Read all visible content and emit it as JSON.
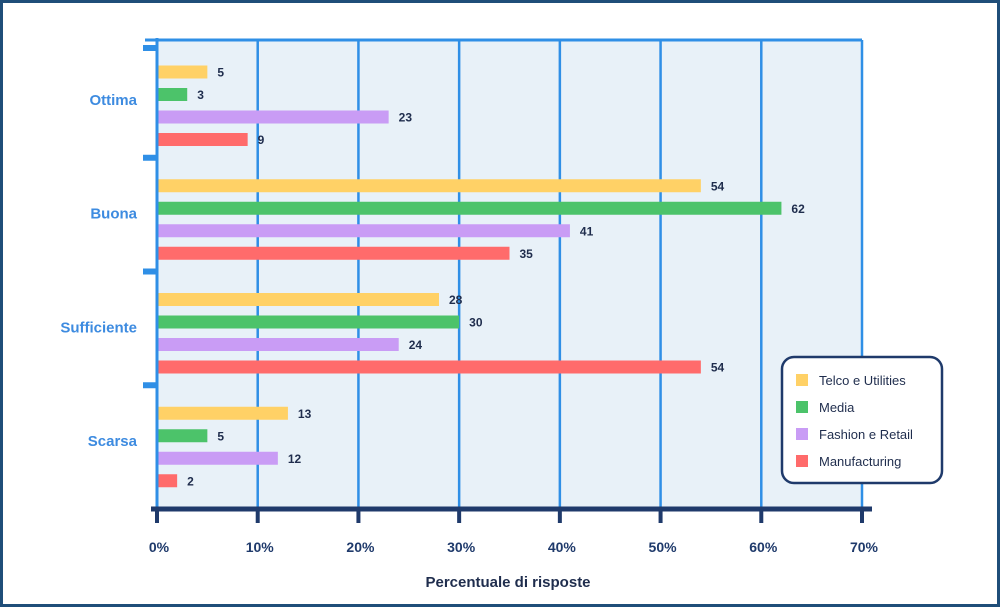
{
  "chart_data": {
    "type": "bar",
    "orientation": "horizontal",
    "categories": [
      "Ottima",
      "Buona",
      "Sufficiente",
      "Scarsa"
    ],
    "series": [
      {
        "name": "Telco e Utilities",
        "color": "#ffd166",
        "values": [
          5,
          54,
          28,
          13
        ]
      },
      {
        "name": "Media",
        "color": "#4cc36a",
        "values": [
          3,
          62,
          30,
          5
        ]
      },
      {
        "name": "Fashion e Retail",
        "color": "#c99cf5",
        "values": [
          23,
          41,
          24,
          12
        ]
      },
      {
        "name": "Manufacturing",
        "color": "#ff6b6b",
        "values": [
          9,
          35,
          54,
          2
        ]
      }
    ],
    "xlabel": "Percentuale di risposte",
    "xlim": [
      0,
      70
    ],
    "xticks": [
      0,
      10,
      20,
      30,
      40,
      50,
      60,
      70
    ],
    "xtick_labels": [
      "0%",
      "10%",
      "20%",
      "30%",
      "40%",
      "50%",
      "60%",
      "70%"
    ],
    "grid": true,
    "legend_position": "bottom-right",
    "colors": {
      "plot_background": "#e8f1f8",
      "gridline": "#2f8fe6",
      "axis": "#1f3a6b",
      "category_label": "#3d8be0"
    }
  }
}
